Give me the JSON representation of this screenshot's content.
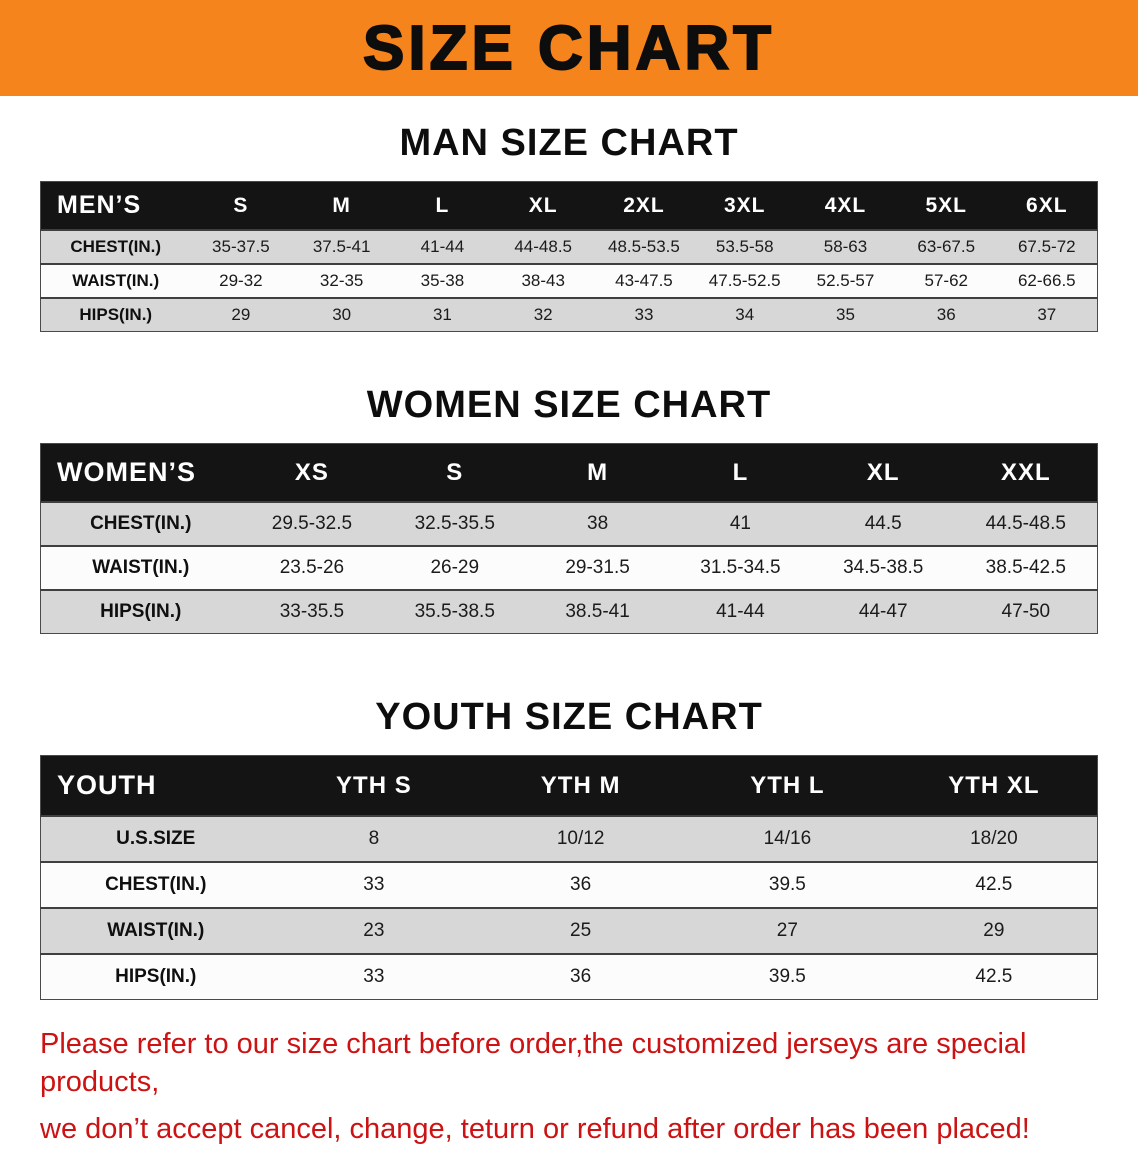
{
  "banner": {
    "title": "SIZE CHART"
  },
  "colors": {
    "accent-orange": "#f5841c",
    "header-black": "#141414",
    "row-gray": "#d7d7d7",
    "row-white": "#fcfcfc",
    "footer-red": "#cc1212"
  },
  "sections": [
    {
      "heading": "MAN SIZE CHART",
      "table": {
        "corner": "MEN’S",
        "columns": [
          "S",
          "M",
          "L",
          "XL",
          "2XL",
          "3XL",
          "4XL",
          "5XL",
          "6XL"
        ],
        "rows": [
          {
            "label": "CHEST(IN.)",
            "values": [
              "35-37.5",
              "37.5-41",
              "41-44",
              "44-48.5",
              "48.5-53.5",
              "53.5-58",
              "58-63",
              "63-67.5",
              "67.5-72"
            ]
          },
          {
            "label": "WAIST(IN.)",
            "values": [
              "29-32",
              "32-35",
              "35-38",
              "38-43",
              "43-47.5",
              "47.5-52.5",
              "52.5-57",
              "57-62",
              "62-66.5"
            ]
          },
          {
            "label": "HIPS(IN.)",
            "values": [
              "29",
              "30",
              "31",
              "32",
              "33",
              "34",
              "35",
              "36",
              "37"
            ]
          }
        ]
      }
    },
    {
      "heading": "WOMEN SIZE CHART",
      "table": {
        "corner": "WOMEN’S",
        "columns": [
          "XS",
          "S",
          "M",
          "L",
          "XL",
          "XXL"
        ],
        "rows": [
          {
            "label": "CHEST(IN.)",
            "values": [
              "29.5-32.5",
              "32.5-35.5",
              "38",
              "41",
              "44.5",
              "44.5-48.5"
            ]
          },
          {
            "label": "WAIST(IN.)",
            "values": [
              "23.5-26",
              "26-29",
              "29-31.5",
              "31.5-34.5",
              "34.5-38.5",
              "38.5-42.5"
            ]
          },
          {
            "label": "HIPS(IN.)",
            "values": [
              "33-35.5",
              "35.5-38.5",
              "38.5-41",
              "41-44",
              "44-47",
              "47-50"
            ]
          }
        ]
      }
    },
    {
      "heading": "YOUTH SIZE CHART",
      "table": {
        "corner": "YOUTH",
        "columns": [
          "YTH S",
          "YTH M",
          "YTH L",
          "YTH XL"
        ],
        "rows": [
          {
            "label": "U.S.SIZE",
            "values": [
              "8",
              "10/12",
              "14/16",
              "18/20"
            ]
          },
          {
            "label": "CHEST(IN.)",
            "values": [
              "33",
              "36",
              "39.5",
              "42.5"
            ]
          },
          {
            "label": "WAIST(IN.)",
            "values": [
              "23",
              "25",
              "27",
              "29"
            ]
          },
          {
            "label": "HIPS(IN.)",
            "values": [
              "33",
              "36",
              "39.5",
              "42.5"
            ]
          }
        ]
      }
    }
  ],
  "footer": {
    "line1": "Please refer to our size chart before order,the customized jerseys are special products,",
    "line2": "we don’t accept cancel, change, teturn or refund after order has been placed!"
  }
}
